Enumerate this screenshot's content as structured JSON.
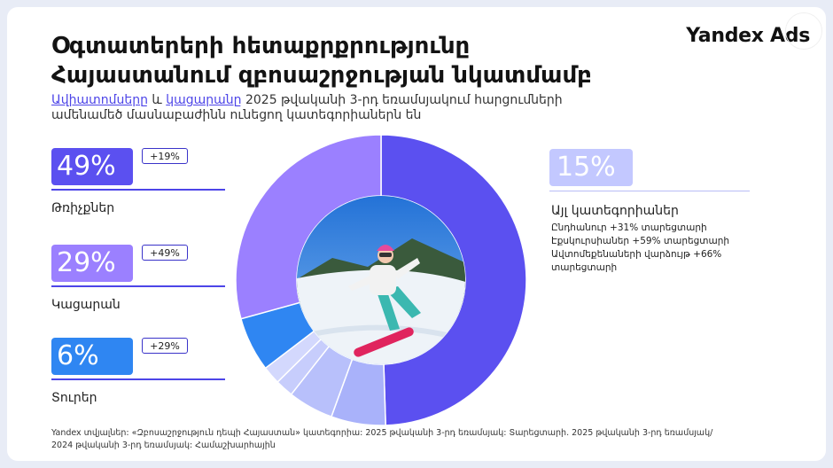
{
  "header": {
    "title_line1": "Օգտատերերի հետաքրքրությունը",
    "title_line2": "Հայաստանում զբոսաշրջության նկատմամբ",
    "subtitle_hl1": "Ավիատոմսերը",
    "subtitle_and": " և ",
    "subtitle_hl2": "կացարանը",
    "subtitle_rest": " 2025 թվականի 3-րդ եռամսյակում հարցումների ամենամեծ մասնաբաժինն ունեցող կատեգորիաներն են",
    "brand": "Yandex Ads"
  },
  "stats": [
    {
      "value": "49%",
      "change": "+19%",
      "label": "Թռիչքներ"
    },
    {
      "value": "29%",
      "change": "+49%",
      "label": "Կացարան"
    },
    {
      "value": "6%",
      "change": "+29%",
      "label": "Տուրեր"
    }
  ],
  "other": {
    "value": "15%",
    "label": "Այլ կատեգորիաներ",
    "notes": [
      "Ընդհանուր +31% տարեցտարի",
      "Էքսկուրսիաներ +59% տարեցտարի",
      "Ավտոմեքենաների վարձույթ +66%",
      "տարեցտարի"
    ]
  },
  "footer": {
    "line1": "Yandex տվյալներ: «Զբոսաշրջություն դեպի Հայաստան» կատեգորիա: 2025 թվականի 3-րդ եռամսյակ: Տարեցտարի. 2025 թվականի 3-րդ եռամսյակ/",
    "line2": "2024 թվականի 3-րդ եռամսյակ: Համաշխարհային"
  },
  "chart_data": {
    "type": "pie",
    "style": "donut",
    "categories": [
      "Թռիչքներ",
      "Կացարան",
      "Տուրեր",
      "Այլ կատեգորիաներ"
    ],
    "values": [
      49,
      29,
      6,
      15
    ],
    "other_breakdown_values": [
      6,
      5,
      2,
      2
    ],
    "colors": [
      "#5b50f0",
      "#9b80ff",
      "#2f86f2",
      "#9ea8f8"
    ],
    "center_image": "snowboarder-photo"
  }
}
